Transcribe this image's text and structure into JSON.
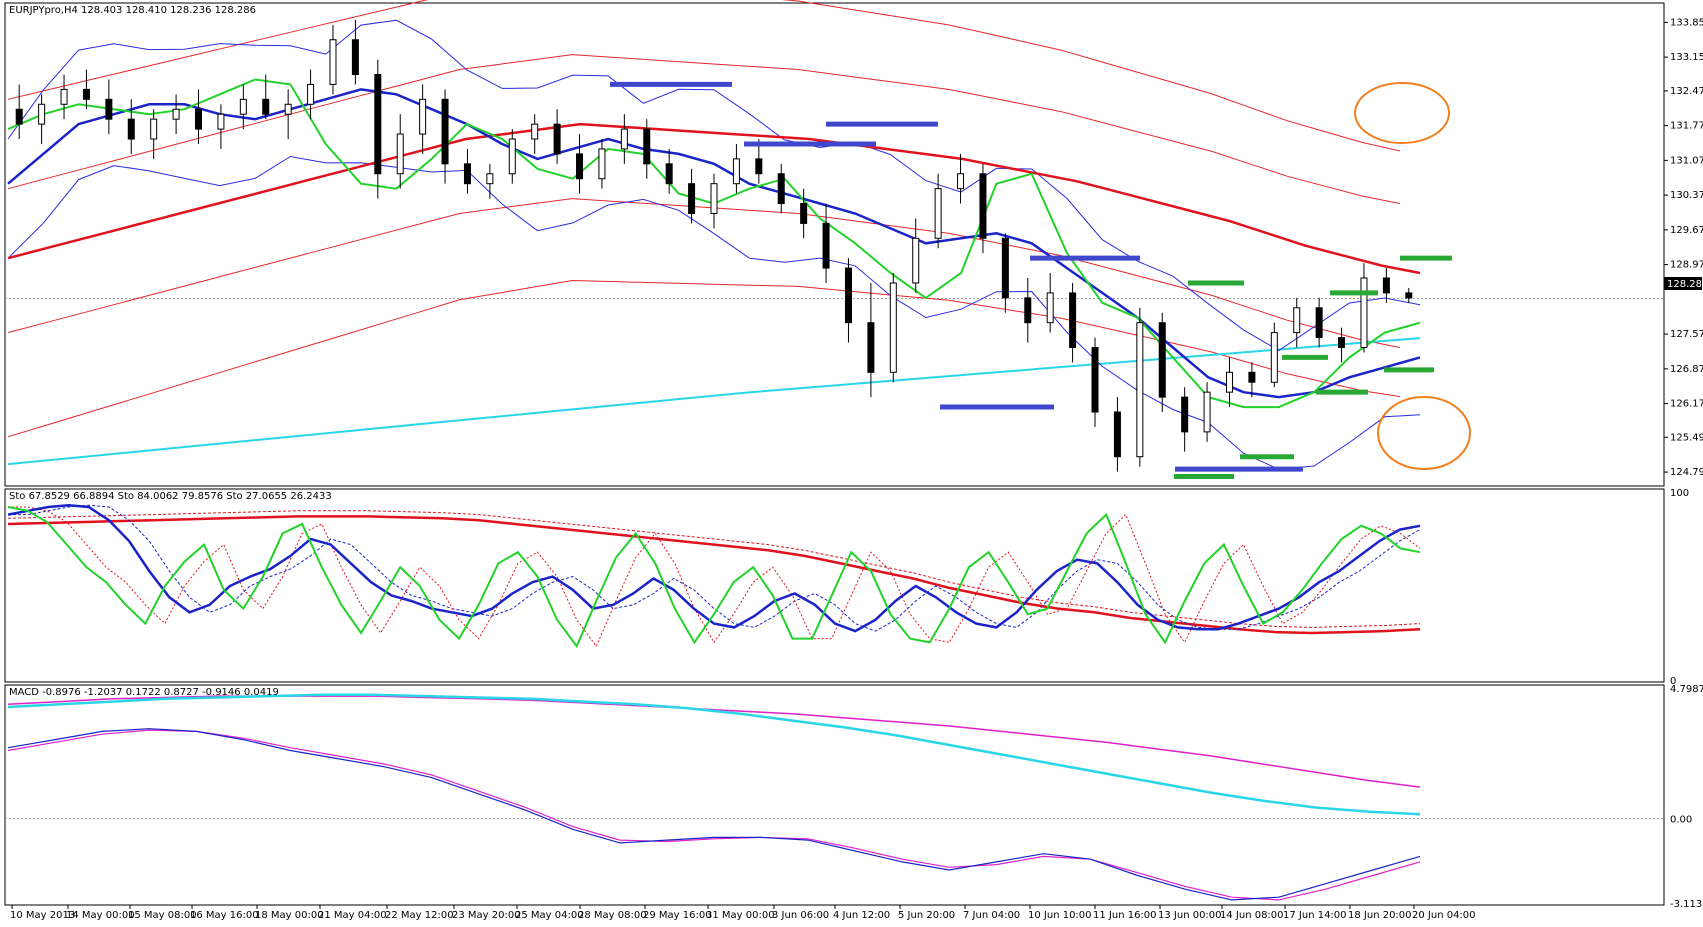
{
  "chart_data": [
    {
      "type": "candlestick",
      "title": "EURJPYpro,H4 128.403 128.410 128.236 128.286",
      "symbol": "EURJPYpro",
      "timeframe": "H4",
      "ohlc_readout": [
        128.403,
        128.41,
        128.236,
        128.286
      ],
      "last_price": 128.286,
      "last_price_label": "128.286",
      "y_ticks": [
        "133.850",
        "133.150",
        "132.470",
        "131.770",
        "131.070",
        "130.370",
        "129.670",
        "128.970",
        "127.570",
        "126.870",
        "126.170",
        "125.490",
        "124.790"
      ],
      "y_tick_values": [
        133.85,
        133.15,
        132.47,
        131.77,
        131.07,
        130.37,
        129.67,
        128.97,
        127.57,
        126.87,
        126.17,
        125.49,
        124.79
      ],
      "ylim": [
        124.55,
        134.2
      ],
      "ma_red_slow": [
        129.1,
        129.3,
        129.5,
        129.7,
        129.9,
        130.1,
        130.3,
        130.5,
        130.7,
        130.9,
        131.1,
        131.3,
        131.5,
        131.6,
        131.7,
        131.8,
        131.75,
        131.7,
        131.65,
        131.6,
        131.55,
        131.5,
        131.4,
        131.3,
        131.2,
        131.1,
        130.95,
        130.8,
        130.65,
        130.45,
        130.25,
        130.05,
        129.85,
        129.6,
        129.35,
        129.15,
        128.95,
        128.8
      ],
      "ma_cyan": [
        124.95,
        125.07,
        125.19,
        125.31,
        125.43,
        125.55,
        125.67,
        125.79,
        125.91,
        126.03,
        126.15,
        126.27,
        126.39,
        126.49,
        126.59,
        126.69,
        126.79,
        126.89,
        126.99,
        127.09,
        127.19,
        127.29,
        127.39,
        127.49
      ],
      "ma_blue": [
        130.6,
        131.2,
        131.8,
        132.0,
        132.2,
        132.2,
        132.0,
        131.9,
        132.1,
        132.3,
        132.5,
        132.4,
        132.1,
        131.8,
        131.4,
        131.1,
        131.3,
        131.5,
        131.3,
        131.2,
        131.0,
        130.6,
        130.4,
        130.2,
        130.0,
        129.7,
        129.4,
        129.5,
        129.6,
        129.4,
        128.9,
        128.4,
        127.9,
        127.3,
        126.7,
        126.4,
        126.3,
        126.4,
        126.7,
        126.9,
        127.1
      ],
      "ma_green": [
        131.7,
        132.0,
        132.2,
        132.1,
        132.0,
        132.1,
        132.4,
        132.7,
        132.6,
        131.4,
        130.6,
        130.5,
        131.1,
        131.8,
        131.5,
        130.9,
        130.7,
        131.3,
        131.2,
        130.4,
        130.2,
        130.5,
        130.7,
        129.9,
        129.4,
        128.8,
        128.3,
        128.8,
        130.6,
        130.8,
        129.2,
        128.2,
        127.9,
        127.1,
        126.3,
        126.1,
        126.1,
        126.4,
        127.1,
        127.6,
        127.8
      ],
      "candles": [
        {
          "o": 132.1,
          "h": 132.6,
          "l": 131.5,
          "c": 131.8
        },
        {
          "o": 131.8,
          "h": 132.4,
          "l": 131.4,
          "c": 132.2
        },
        {
          "o": 132.2,
          "h": 132.8,
          "l": 131.9,
          "c": 132.5
        },
        {
          "o": 132.5,
          "h": 132.9,
          "l": 132.1,
          "c": 132.3
        },
        {
          "o": 132.3,
          "h": 132.7,
          "l": 131.6,
          "c": 131.9
        },
        {
          "o": 131.9,
          "h": 132.3,
          "l": 131.2,
          "c": 131.5
        },
        {
          "o": 131.5,
          "h": 132.1,
          "l": 131.1,
          "c": 131.9
        },
        {
          "o": 131.9,
          "h": 132.4,
          "l": 131.6,
          "c": 132.1
        },
        {
          "o": 132.1,
          "h": 132.5,
          "l": 131.4,
          "c": 131.7
        },
        {
          "o": 131.7,
          "h": 132.2,
          "l": 131.3,
          "c": 132.0
        },
        {
          "o": 132.0,
          "h": 132.6,
          "l": 131.7,
          "c": 132.3
        },
        {
          "o": 132.3,
          "h": 132.8,
          "l": 131.9,
          "c": 132.0
        },
        {
          "o": 132.0,
          "h": 132.5,
          "l": 131.5,
          "c": 132.2
        },
        {
          "o": 132.2,
          "h": 132.9,
          "l": 131.9,
          "c": 132.6
        },
        {
          "o": 132.6,
          "h": 133.8,
          "l": 132.4,
          "c": 133.5
        },
        {
          "o": 133.5,
          "h": 133.9,
          "l": 132.6,
          "c": 132.8
        },
        {
          "o": 132.8,
          "h": 133.1,
          "l": 130.3,
          "c": 130.8
        },
        {
          "o": 130.8,
          "h": 132.0,
          "l": 130.5,
          "c": 131.6
        },
        {
          "o": 131.6,
          "h": 132.6,
          "l": 131.2,
          "c": 132.3
        },
        {
          "o": 132.3,
          "h": 132.5,
          "l": 130.6,
          "c": 131.0
        },
        {
          "o": 131.0,
          "h": 131.3,
          "l": 130.4,
          "c": 130.6
        },
        {
          "o": 130.6,
          "h": 131.0,
          "l": 130.3,
          "c": 130.8
        },
        {
          "o": 130.8,
          "h": 131.7,
          "l": 130.6,
          "c": 131.5
        },
        {
          "o": 131.5,
          "h": 132.0,
          "l": 131.2,
          "c": 131.8
        },
        {
          "o": 131.8,
          "h": 132.1,
          "l": 131.0,
          "c": 131.2
        },
        {
          "o": 131.2,
          "h": 131.6,
          "l": 130.4,
          "c": 130.7
        },
        {
          "o": 130.7,
          "h": 131.5,
          "l": 130.5,
          "c": 131.3
        },
        {
          "o": 131.3,
          "h": 132.0,
          "l": 131.0,
          "c": 131.7
        },
        {
          "o": 131.7,
          "h": 131.9,
          "l": 130.7,
          "c": 131.0
        },
        {
          "o": 131.0,
          "h": 131.3,
          "l": 130.4,
          "c": 130.6
        },
        {
          "o": 130.6,
          "h": 130.9,
          "l": 129.8,
          "c": 130.0
        },
        {
          "o": 130.0,
          "h": 130.8,
          "l": 129.7,
          "c": 130.6
        },
        {
          "o": 130.6,
          "h": 131.4,
          "l": 130.4,
          "c": 131.1
        },
        {
          "o": 131.1,
          "h": 131.5,
          "l": 130.6,
          "c": 130.8
        },
        {
          "o": 130.8,
          "h": 131.0,
          "l": 130.0,
          "c": 130.2
        },
        {
          "o": 130.2,
          "h": 130.5,
          "l": 129.5,
          "c": 129.8
        },
        {
          "o": 129.8,
          "h": 130.2,
          "l": 128.6,
          "c": 128.9
        },
        {
          "o": 128.9,
          "h": 129.1,
          "l": 127.4,
          "c": 127.8
        },
        {
          "o": 127.8,
          "h": 128.6,
          "l": 126.3,
          "c": 126.8
        },
        {
          "o": 126.8,
          "h": 128.8,
          "l": 126.6,
          "c": 128.6
        },
        {
          "o": 128.6,
          "h": 129.9,
          "l": 128.4,
          "c": 129.5
        },
        {
          "o": 129.5,
          "h": 130.8,
          "l": 129.3,
          "c": 130.5
        },
        {
          "o": 130.5,
          "h": 131.2,
          "l": 130.2,
          "c": 130.8
        },
        {
          "o": 130.8,
          "h": 131.0,
          "l": 129.2,
          "c": 129.5
        },
        {
          "o": 129.5,
          "h": 129.6,
          "l": 128.0,
          "c": 128.3
        },
        {
          "o": 128.3,
          "h": 128.7,
          "l": 127.4,
          "c": 127.8
        },
        {
          "o": 127.8,
          "h": 128.8,
          "l": 127.6,
          "c": 128.4
        },
        {
          "o": 128.4,
          "h": 128.6,
          "l": 127.0,
          "c": 127.3
        },
        {
          "o": 127.3,
          "h": 127.5,
          "l": 125.7,
          "c": 126.0
        },
        {
          "o": 126.0,
          "h": 126.3,
          "l": 124.8,
          "c": 125.1
        },
        {
          "o": 125.1,
          "h": 128.1,
          "l": 124.9,
          "c": 127.8
        },
        {
          "o": 127.8,
          "h": 128.0,
          "l": 126.0,
          "c": 126.3
        },
        {
          "o": 126.3,
          "h": 126.5,
          "l": 125.2,
          "c": 125.6
        },
        {
          "o": 125.6,
          "h": 126.6,
          "l": 125.4,
          "c": 126.4
        },
        {
          "o": 126.4,
          "h": 127.1,
          "l": 126.1,
          "c": 126.8
        },
        {
          "o": 126.8,
          "h": 127.0,
          "l": 126.3,
          "c": 126.6
        },
        {
          "o": 126.6,
          "h": 127.8,
          "l": 126.5,
          "c": 127.6
        },
        {
          "o": 127.6,
          "h": 128.3,
          "l": 127.3,
          "c": 128.1
        },
        {
          "o": 128.1,
          "h": 128.3,
          "l": 127.3,
          "c": 127.5
        },
        {
          "o": 127.5,
          "h": 127.7,
          "l": 127.0,
          "c": 127.3
        },
        {
          "o": 127.3,
          "h": 129.0,
          "l": 127.2,
          "c": 128.7
        },
        {
          "o": 128.7,
          "h": 128.9,
          "l": 128.2,
          "c": 128.4
        },
        {
          "o": 128.4,
          "h": 128.5,
          "l": 128.2,
          "c": 128.3
        }
      ],
      "support_resistance_levels": [
        {
          "color": "#3f48cc",
          "levels": [
            132.6,
            131.8,
            131.4,
            129.1,
            126.1,
            124.85
          ]
        },
        {
          "color": "#2aa836",
          "levels": [
            129.1,
            128.6,
            128.4,
            127.1,
            126.85,
            126.4,
            125.1,
            124.7
          ]
        }
      ],
      "x_ticks": [
        "10 May 2013",
        "14 May 00:00",
        "15 May 08:00",
        "16 May 16:00",
        "18 May 00:00",
        "21 May 04:00",
        "22 May 12:00",
        "23 May 20:00",
        "25 May 04:00",
        "28 May 08:00",
        "29 May 16:00",
        "31 May 00:00",
        "3 Jun 06:00",
        "4 Jun 12:00",
        "5 Jun 20:00",
        "7 Jun 04:00",
        "10 Jun 10:00",
        "11 Jun 16:00",
        "13 Jun 00:00",
        "14 Jun 08:00",
        "17 Jun 14:00",
        "18 Jun 20:00",
        "20 Jun 04:00"
      ]
    },
    {
      "type": "line",
      "title": "Sto 67.8529 66.8894  Sto 84.0062 79.8576  Sto 27.0655 26.2433",
      "y_ticks": [
        "100",
        "0"
      ],
      "ylim": [
        0,
        100
      ],
      "sto_fast": [
        92,
        90,
        84,
        72,
        60,
        52,
        40,
        30,
        50,
        63,
        72,
        48,
        38,
        55,
        78,
        83,
        60,
        40,
        25,
        42,
        60,
        50,
        32,
        22,
        40,
        62,
        68,
        55,
        32,
        18,
        42,
        65,
        78,
        62,
        38,
        20,
        35,
        52,
        60,
        45,
        22,
        22,
        45,
        68,
        58,
        35,
        22,
        20,
        38,
        60,
        68,
        52,
        35,
        38,
        58,
        78,
        88,
        62,
        35,
        20,
        42,
        62,
        72,
        50,
        30,
        36,
        48,
        62,
        75,
        82,
        78,
        70,
        68
      ],
      "sto_main_blue": [
        88,
        90,
        92,
        93,
        92,
        85,
        74,
        58,
        44,
        36,
        40,
        50,
        55,
        59,
        66,
        75,
        72,
        62,
        52,
        45,
        42,
        38,
        36,
        34,
        38,
        46,
        52,
        55,
        48,
        38,
        40,
        46,
        54,
        48,
        38,
        30,
        28,
        34,
        42,
        46,
        40,
        30,
        26,
        32,
        42,
        50,
        44,
        36,
        30,
        28,
        36,
        48,
        58,
        64,
        62,
        52,
        40,
        32,
        28,
        27,
        27,
        30,
        34,
        38,
        44,
        52,
        58,
        66,
        74,
        80,
        82
      ],
      "sto_signal_red_slow": [
        83,
        83.5,
        84,
        84.5,
        85,
        85.5,
        86,
        86.5,
        87,
        87,
        87,
        86.5,
        86,
        85,
        83,
        81,
        79,
        77,
        75,
        73,
        71,
        69,
        66,
        62,
        58,
        54,
        49,
        45,
        41,
        38,
        36,
        33,
        31,
        29,
        27,
        25.5,
        25,
        25.5,
        26,
        27
      ]
    },
    {
      "type": "line",
      "title": "MACD -0.8976 -1.2037 0.1722 0.8727 -0.9146 0.0419",
      "y_ticks": [
        "4.7987",
        "0.00",
        "-3.1133"
      ],
      "ylim": [
        -3.1133,
        4.7987
      ],
      "macd_slow_cyan": [
        4.1,
        4.2,
        4.3,
        4.4,
        4.45,
        4.5,
        4.55,
        4.55,
        4.5,
        4.45,
        4.4,
        4.3,
        4.2,
        4.05,
        3.85,
        3.6,
        3.35,
        3.05,
        2.7,
        2.35,
        2.0,
        1.65,
        1.3,
        0.95,
        0.65,
        0.4,
        0.25,
        0.15
      ],
      "macd_signal_pink": [
        4.2,
        4.3,
        4.4,
        4.45,
        4.5,
        4.5,
        4.5,
        4.5,
        4.45,
        4.4,
        4.35,
        4.25,
        4.15,
        4.05,
        3.95,
        3.85,
        3.7,
        3.55,
        3.4,
        3.2,
        3.0,
        2.8,
        2.55,
        2.3,
        2.0,
        1.7,
        1.4,
        1.15
      ],
      "macd_fast_blue": [
        2.6,
        2.9,
        3.2,
        3.3,
        3.2,
        2.9,
        2.5,
        2.2,
        1.9,
        1.5,
        0.9,
        0.3,
        -0.4,
        -0.9,
        -0.8,
        -0.7,
        -0.7,
        -0.8,
        -1.2,
        -1.6,
        -1.9,
        -1.6,
        -1.3,
        -1.5,
        -2.1,
        -2.6,
        -3.0,
        -2.9,
        -2.4,
        -1.9,
        -1.4
      ],
      "macd_fast_pink": [
        2.5,
        2.8,
        3.1,
        3.25,
        3.2,
        2.95,
        2.6,
        2.3,
        2.0,
        1.6,
        1.0,
        0.4,
        -0.3,
        -0.8,
        -0.85,
        -0.75,
        -0.7,
        -0.75,
        -1.1,
        -1.5,
        -1.8,
        -1.7,
        -1.4,
        -1.5,
        -2.0,
        -2.5,
        -2.9,
        -3.0,
        -2.6,
        -2.1,
        -1.6
      ]
    }
  ]
}
